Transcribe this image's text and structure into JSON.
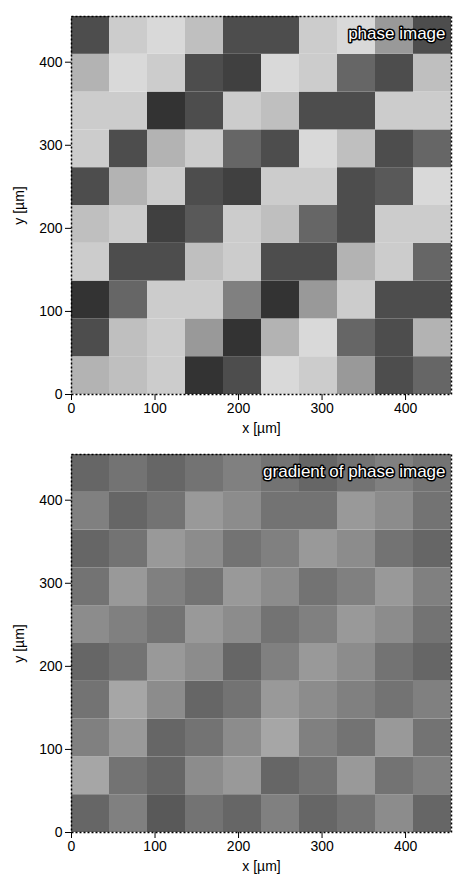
{
  "chart_data": [
    {
      "type": "heatmap",
      "title": "phase image",
      "x_label": "x [µm]",
      "y_label": "y [µm]",
      "xlim": [
        0,
        455
      ],
      "ylim": [
        0,
        455
      ],
      "xticks": [
        0,
        100,
        200,
        300,
        400
      ],
      "yticks": [
        0,
        100,
        200,
        300,
        400
      ],
      "x_bins": [
        0,
        45.5,
        91,
        136.5,
        182,
        227.5,
        273,
        318.5,
        364,
        409.5,
        455
      ],
      "y_bins": [
        0,
        45.5,
        91,
        136.5,
        182,
        227.5,
        273,
        318.5,
        364,
        409.5,
        455
      ],
      "zlim": [
        0,
        1
      ],
      "cells": [
        [
          0.7,
          0.75,
          0.8,
          0.2,
          0.3,
          0.85,
          0.8,
          0.6,
          0.3,
          0.4
        ],
        [
          0.3,
          0.75,
          0.8,
          0.6,
          0.2,
          0.7,
          0.85,
          0.4,
          0.3,
          0.7
        ],
        [
          0.2,
          0.4,
          0.8,
          0.8,
          0.5,
          0.2,
          0.6,
          0.8,
          0.3,
          0.3
        ],
        [
          0.8,
          0.3,
          0.3,
          0.75,
          0.8,
          0.3,
          0.3,
          0.7,
          0.8,
          0.4
        ],
        [
          0.75,
          0.8,
          0.25,
          0.35,
          0.8,
          0.75,
          0.4,
          0.3,
          0.8,
          0.8
        ],
        [
          0.3,
          0.7,
          0.8,
          0.3,
          0.25,
          0.8,
          0.8,
          0.3,
          0.35,
          0.85
        ],
        [
          0.8,
          0.3,
          0.7,
          0.8,
          0.4,
          0.3,
          0.85,
          0.75,
          0.3,
          0.4
        ],
        [
          0.8,
          0.8,
          0.2,
          0.3,
          0.8,
          0.75,
          0.3,
          0.3,
          0.8,
          0.8
        ],
        [
          0.7,
          0.85,
          0.8,
          0.3,
          0.25,
          0.85,
          0.8,
          0.4,
          0.3,
          0.75
        ],
        [
          0.3,
          0.8,
          0.85,
          0.75,
          0.3,
          0.3,
          0.8,
          0.85,
          0.6,
          0.3
        ]
      ]
    },
    {
      "type": "heatmap",
      "title": "gradient of phase image",
      "x_label": "x [µm]",
      "y_label": "y [µm]",
      "xlim": [
        0,
        455
      ],
      "ylim": [
        0,
        455
      ],
      "xticks": [
        0,
        100,
        200,
        300,
        400
      ],
      "yticks": [
        0,
        100,
        200,
        300,
        400
      ],
      "x_bins": [
        0,
        45.5,
        91,
        136.5,
        182,
        227.5,
        273,
        318.5,
        364,
        409.5,
        455
      ],
      "y_bins": [
        0,
        45.5,
        91,
        136.5,
        182,
        227.5,
        273,
        318.5,
        364,
        409.5,
        455
      ],
      "zlim": [
        0,
        1
      ],
      "cells": [
        [
          0.4,
          0.5,
          0.35,
          0.45,
          0.4,
          0.5,
          0.4,
          0.45,
          0.55,
          0.4
        ],
        [
          0.65,
          0.45,
          0.4,
          0.55,
          0.6,
          0.4,
          0.45,
          0.6,
          0.45,
          0.5
        ],
        [
          0.5,
          0.6,
          0.4,
          0.45,
          0.55,
          0.65,
          0.5,
          0.45,
          0.6,
          0.45
        ],
        [
          0.45,
          0.65,
          0.55,
          0.4,
          0.45,
          0.6,
          0.55,
          0.5,
          0.45,
          0.5
        ],
        [
          0.4,
          0.45,
          0.6,
          0.55,
          0.4,
          0.5,
          0.6,
          0.55,
          0.45,
          0.4
        ],
        [
          0.55,
          0.5,
          0.45,
          0.6,
          0.55,
          0.45,
          0.5,
          0.6,
          0.55,
          0.45
        ],
        [
          0.45,
          0.6,
          0.5,
          0.45,
          0.6,
          0.55,
          0.45,
          0.5,
          0.6,
          0.5
        ],
        [
          0.4,
          0.45,
          0.6,
          0.55,
          0.45,
          0.5,
          0.6,
          0.55,
          0.45,
          0.4
        ],
        [
          0.5,
          0.4,
          0.45,
          0.6,
          0.55,
          0.45,
          0.45,
          0.6,
          0.55,
          0.45
        ],
        [
          0.4,
          0.45,
          0.4,
          0.45,
          0.5,
          0.45,
          0.4,
          0.45,
          0.5,
          0.45
        ]
      ]
    }
  ]
}
